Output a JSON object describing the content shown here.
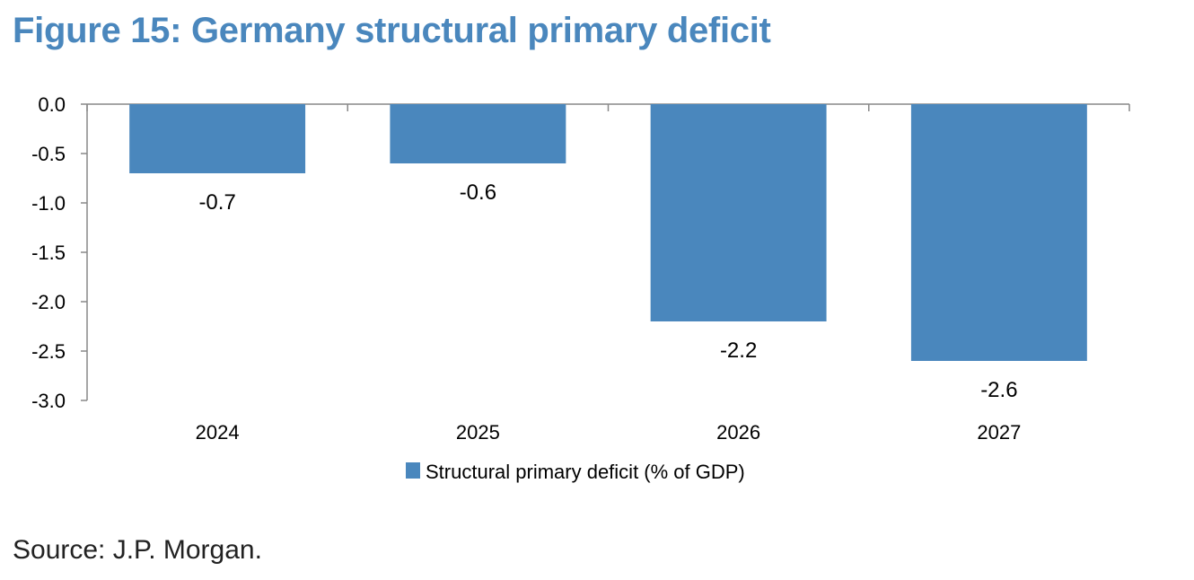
{
  "title": "Figure 15: Germany structural primary deficit",
  "source": "Source: J.P. Morgan.",
  "chart_data": {
    "type": "bar",
    "categories": [
      "2024",
      "2025",
      "2026",
      "2027"
    ],
    "series": [
      {
        "name": "Structural primary deficit (% of GDP)",
        "values": [
          -0.7,
          -0.6,
          -2.2,
          -2.6
        ],
        "color": "#4a87bd"
      }
    ],
    "data_labels": [
      "-0.7",
      "-0.6",
      "-2.2",
      "-2.6"
    ],
    "y_ticks": [
      "0.0",
      "-0.5",
      "-1.0",
      "-1.5",
      "-2.0",
      "-2.5",
      "-3.0"
    ],
    "ylim": [
      -3.0,
      0.0
    ],
    "grid": false,
    "legend_position": "bottom-center"
  }
}
